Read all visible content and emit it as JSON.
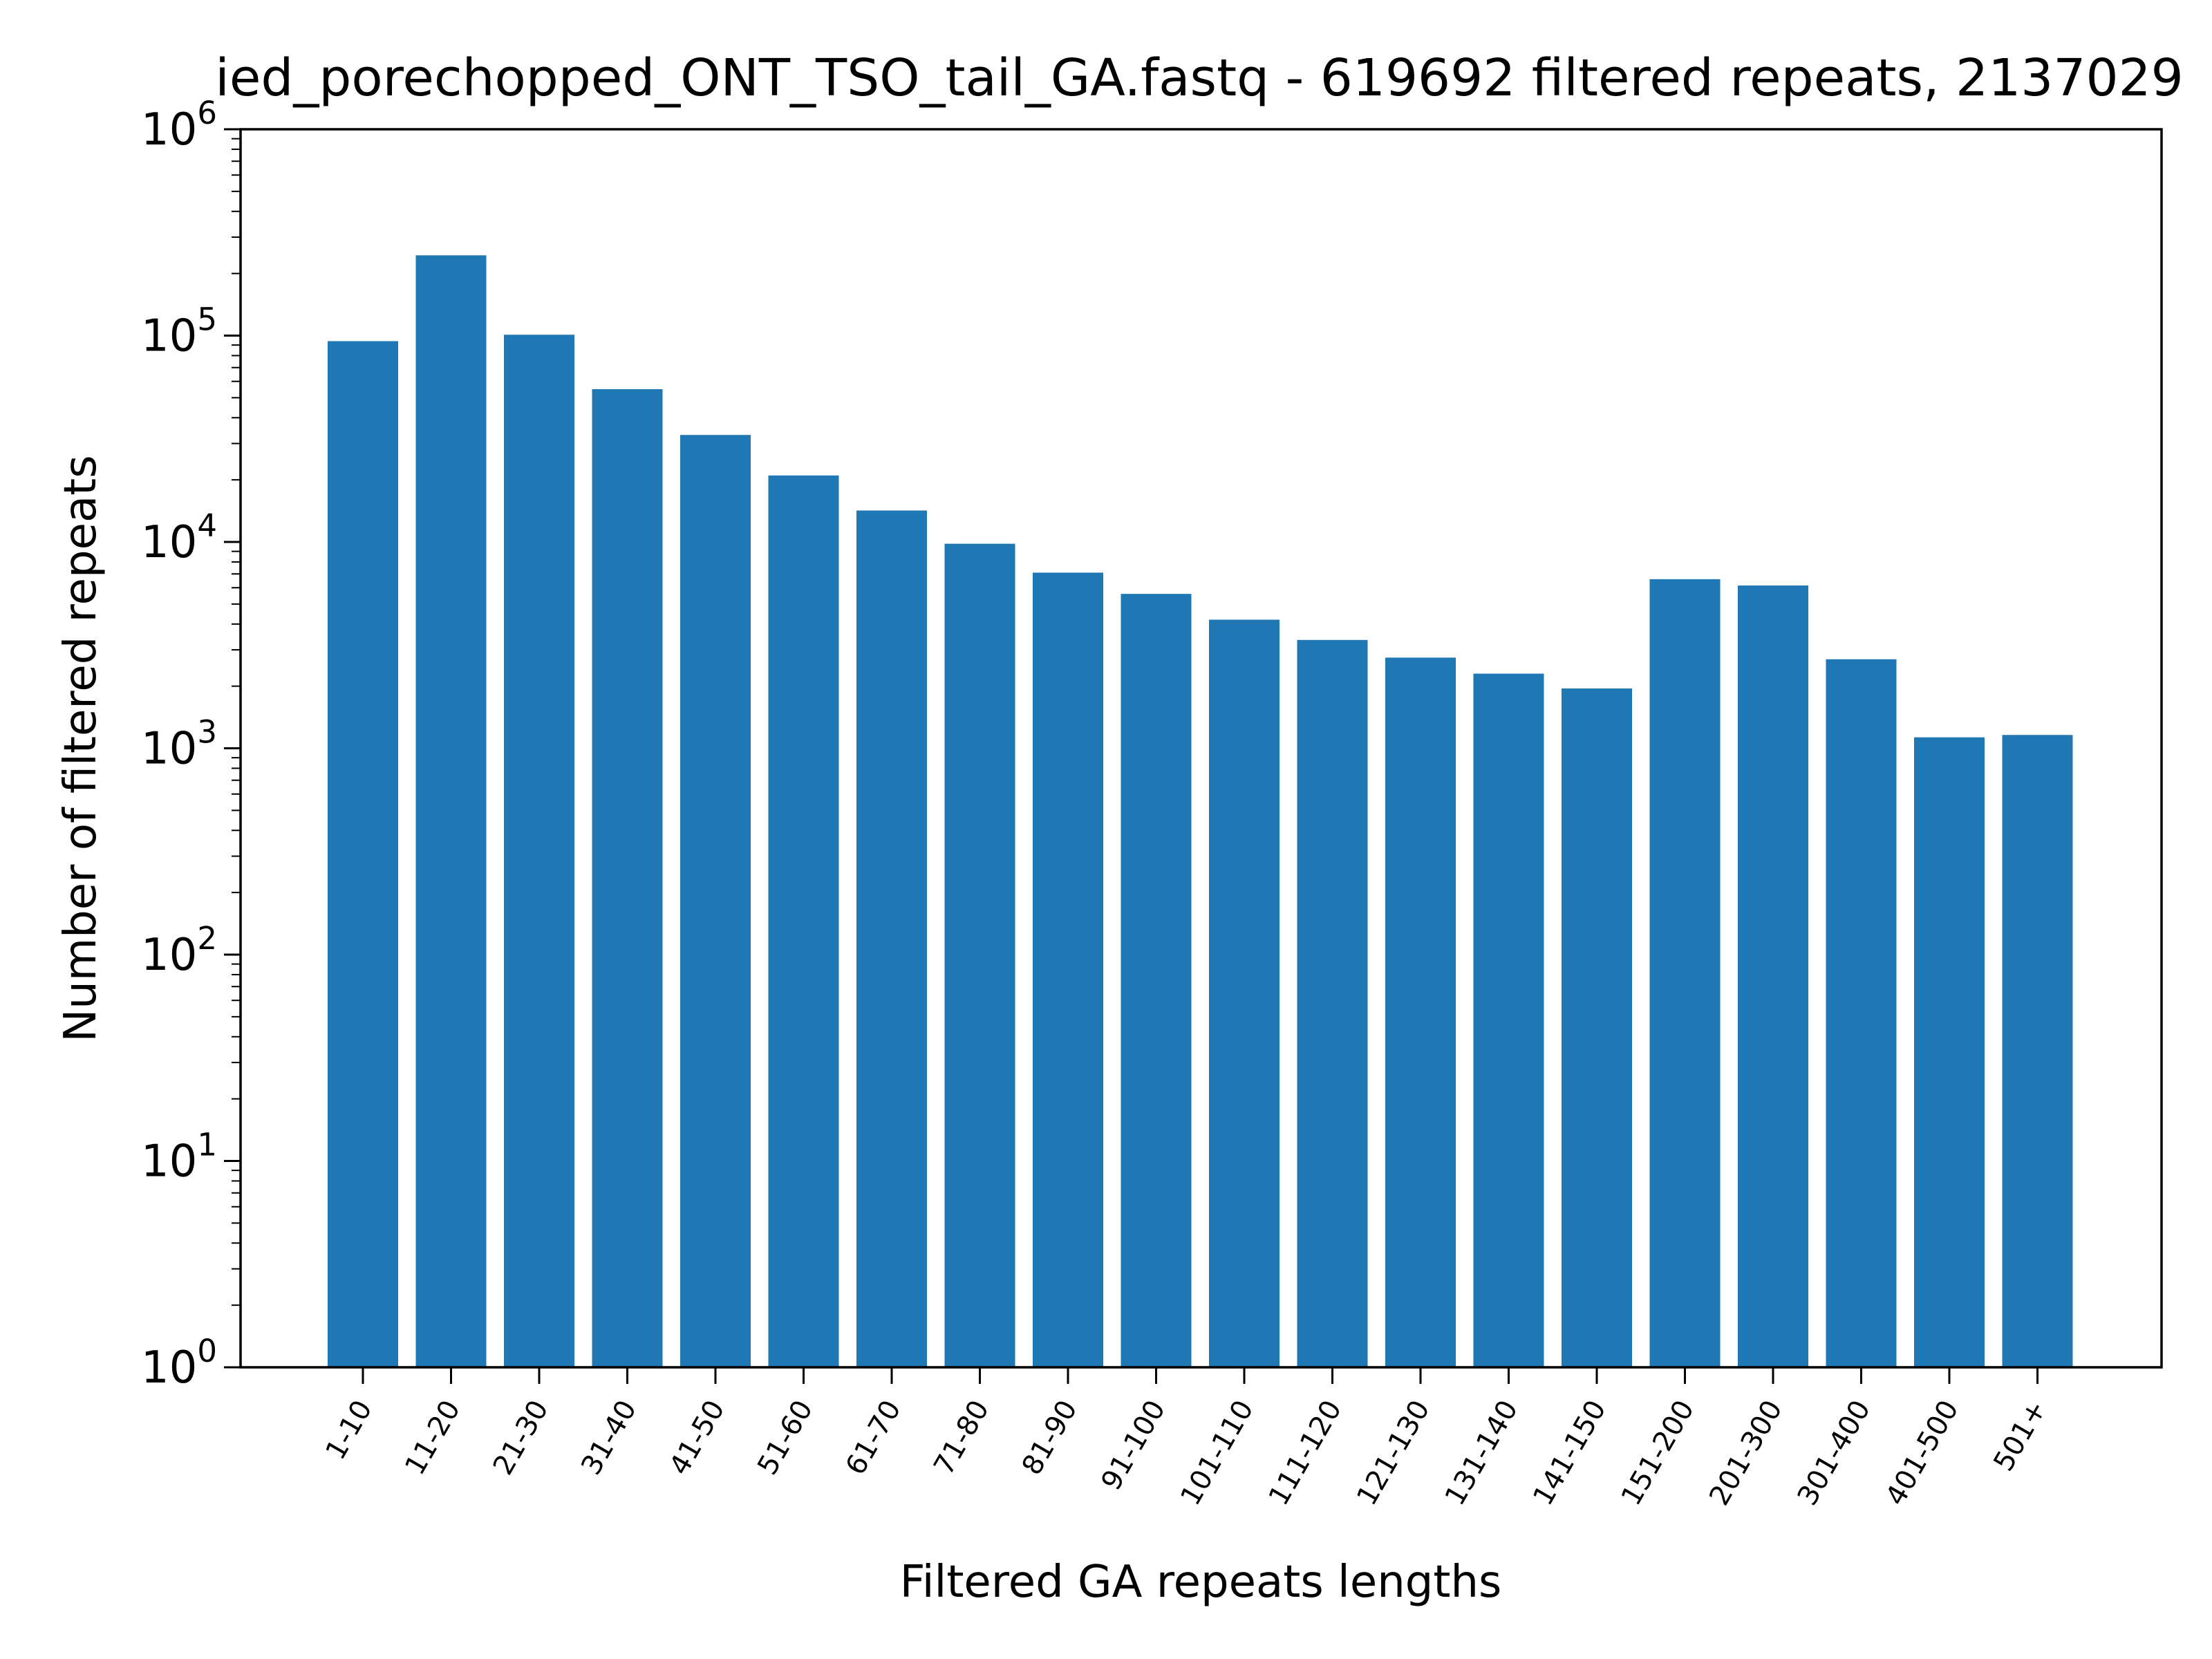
{
  "chart_data": {
    "type": "bar",
    "title": "ied_porechopped_ONT_TSO_tail_GA.fastq - 619692 filtered repeats, 2137029",
    "xlabel": "Filtered GA repeats lengths",
    "ylabel": "Number of filtered repeats",
    "yscale": "log",
    "ylim": [
      1,
      1000000
    ],
    "yticks": [
      {
        "value": 1,
        "base": "10",
        "exp": "0"
      },
      {
        "value": 10,
        "base": "10",
        "exp": "1"
      },
      {
        "value": 100,
        "base": "10",
        "exp": "2"
      },
      {
        "value": 1000,
        "base": "10",
        "exp": "3"
      },
      {
        "value": 10000,
        "base": "10",
        "exp": "4"
      },
      {
        "value": 100000,
        "base": "10",
        "exp": "5"
      },
      {
        "value": 1000000,
        "base": "10",
        "exp": "6"
      }
    ],
    "categories": [
      "1-10",
      "11-20",
      "21-30",
      "31-40",
      "41-50",
      "51-60",
      "61-70",
      "71-80",
      "81-90",
      "91-100",
      "101-110",
      "111-120",
      "121-130",
      "131-140",
      "141-150",
      "151-200",
      "201-300",
      "301-400",
      "401-500",
      "501+"
    ],
    "values": [
      94000,
      245000,
      101000,
      55000,
      33000,
      21000,
      14200,
      9800,
      7100,
      5600,
      4200,
      3350,
      2750,
      2300,
      1950,
      6600,
      6150,
      2700,
      1130,
      1160
    ],
    "bar_color": "#1f77b4",
    "grid": false,
    "legend": "none"
  }
}
